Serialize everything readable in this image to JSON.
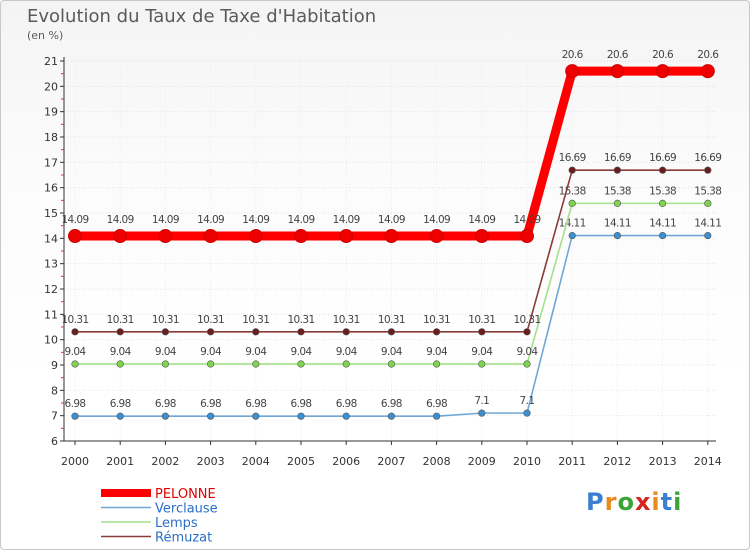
{
  "chart_data": {
    "type": "line",
    "title": "Evolution du Taux de Taxe d'Habitation",
    "ylabel": "(en %)",
    "xlabel": "",
    "ylim": [
      6,
      21
    ],
    "yticks": [
      6,
      7,
      8,
      9,
      10,
      11,
      12,
      13,
      14,
      15,
      16,
      17,
      18,
      19,
      20,
      21
    ],
    "categories": [
      "2000",
      "2001",
      "2002",
      "2003",
      "2004",
      "2005",
      "2006",
      "2007",
      "2008",
      "2009",
      "2010",
      "2011",
      "2012",
      "2013",
      "2014"
    ],
    "series": [
      {
        "name": "PELONNE",
        "color": "#ff0000",
        "marker": "#ee0000",
        "thick": true,
        "values": [
          14.09,
          14.09,
          14.09,
          14.09,
          14.09,
          14.09,
          14.09,
          14.09,
          14.09,
          14.09,
          14.09,
          20.6,
          20.6,
          20.6,
          20.6
        ],
        "labels": [
          "14.09",
          "14.09",
          "14.09",
          "14.09",
          "14.09",
          "14.09",
          "14.09",
          "14.09",
          "14.09",
          "14.09",
          "14.09",
          "20.6",
          "20.6",
          "20.6",
          "20.6"
        ]
      },
      {
        "name": "Verclause",
        "color": "#6fa8d6",
        "marker": "#3d8fd0",
        "thick": false,
        "values": [
          6.98,
          6.98,
          6.98,
          6.98,
          6.98,
          6.98,
          6.98,
          6.98,
          6.98,
          7.1,
          7.1,
          14.11,
          14.11,
          14.11,
          14.11
        ],
        "labels": [
          "6.98",
          "6.98",
          "6.98",
          "6.98",
          "6.98",
          "6.98",
          "6.98",
          "6.98",
          "6.98",
          "7.1",
          "7.1",
          "14.11",
          "14.11",
          "14.11",
          "14.11"
        ]
      },
      {
        "name": "Lemps",
        "color": "#a5e08a",
        "marker": "#7fd44f",
        "thick": false,
        "values": [
          9.04,
          9.04,
          9.04,
          9.04,
          9.04,
          9.04,
          9.04,
          9.04,
          9.04,
          9.04,
          9.04,
          15.38,
          15.38,
          15.38,
          15.38
        ],
        "labels": [
          "9.04",
          "9.04",
          "9.04",
          "9.04",
          "9.04",
          "9.04",
          "9.04",
          "9.04",
          "9.04",
          "9.04",
          "9.04",
          "15.38",
          "15.38",
          "15.38",
          "15.38"
        ]
      },
      {
        "name": "Rémuzat",
        "color": "#8a3a3a",
        "marker": "#6b1d1d",
        "thick": false,
        "values": [
          10.31,
          10.31,
          10.31,
          10.31,
          10.31,
          10.31,
          10.31,
          10.31,
          10.31,
          10.31,
          10.31,
          16.69,
          16.69,
          16.69,
          16.69
        ],
        "labels": [
          "10.31",
          "10.31",
          "10.31",
          "10.31",
          "10.31",
          "10.31",
          "10.31",
          "10.31",
          "10.31",
          "10.31",
          "10.31",
          "16.69",
          "16.69",
          "16.69",
          "16.69"
        ]
      }
    ],
    "legend": [
      "PELONNE",
      "Verclause",
      "Lemps",
      "Rémuzat"
    ],
    "legend_position": "bottom-left"
  },
  "brand": {
    "text": "Proxiti"
  }
}
